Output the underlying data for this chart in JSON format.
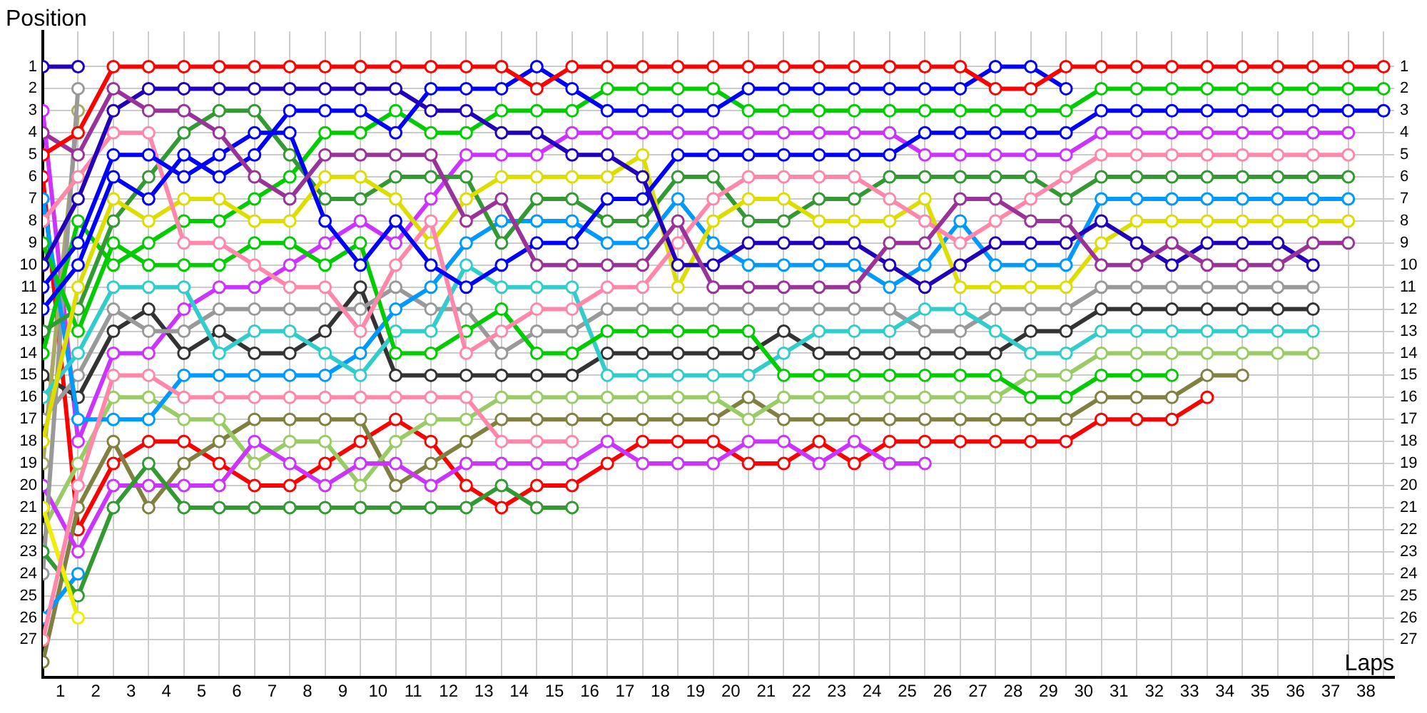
{
  "chart_data": {
    "type": "line",
    "ylabel": "Position",
    "xlabel": "Laps",
    "marker": "circle",
    "grid": true,
    "legend": false,
    "x": [
      0,
      1,
      2,
      3,
      4,
      5,
      6,
      7,
      8,
      9,
      10,
      11,
      12,
      13,
      14,
      15,
      16,
      17,
      18,
      19,
      20,
      21,
      22,
      23,
      24,
      25,
      26,
      27,
      28,
      29,
      30,
      31,
      32,
      33,
      34,
      35,
      36,
      37,
      38
    ],
    "xlim": [
      0,
      38.3
    ],
    "xticks": [
      {
        "value": 0,
        "label": null
      },
      {
        "value": 0.5,
        "label": "1"
      },
      {
        "value": 1,
        "label": null
      },
      {
        "value": 1.5,
        "label": "2"
      },
      {
        "value": 2,
        "label": null
      },
      {
        "value": 2.5,
        "label": "3"
      },
      {
        "value": 3,
        "label": null
      },
      {
        "value": 3.5,
        "label": "4"
      },
      {
        "value": 4,
        "label": null
      },
      {
        "value": 4.5,
        "label": "5"
      },
      {
        "value": 5,
        "label": null
      },
      {
        "value": 5.5,
        "label": "6"
      },
      {
        "value": 6,
        "label": null
      },
      {
        "value": 6.5,
        "label": "7"
      },
      {
        "value": 7,
        "label": null
      },
      {
        "value": 7.5,
        "label": "8"
      },
      {
        "value": 8,
        "label": null
      },
      {
        "value": 8.5,
        "label": "9"
      },
      {
        "value": 9,
        "label": null
      },
      {
        "value": 9.5,
        "label": "10"
      },
      {
        "value": 10,
        "label": null
      },
      {
        "value": 10.5,
        "label": "11"
      },
      {
        "value": 11,
        "label": null
      },
      {
        "value": 11.5,
        "label": "12"
      },
      {
        "value": 12,
        "label": null
      },
      {
        "value": 12.5,
        "label": "13"
      },
      {
        "value": 13,
        "label": null
      },
      {
        "value": 13.5,
        "label": "14"
      },
      {
        "value": 14,
        "label": null
      },
      {
        "value": 14.5,
        "label": "15"
      },
      {
        "value": 15,
        "label": null
      },
      {
        "value": 15.5,
        "label": "16"
      },
      {
        "value": 16,
        "label": null
      },
      {
        "value": 16.5,
        "label": "17"
      },
      {
        "value": 17,
        "label": null
      },
      {
        "value": 17.5,
        "label": "18"
      },
      {
        "value": 18,
        "label": null
      },
      {
        "value": 18.5,
        "label": "19"
      },
      {
        "value": 19,
        "label": null
      },
      {
        "value": 19.5,
        "label": "20"
      },
      {
        "value": 20,
        "label": null
      },
      {
        "value": 20.5,
        "label": "21"
      },
      {
        "value": 21,
        "label": null
      },
      {
        "value": 21.5,
        "label": "22"
      },
      {
        "value": 22,
        "label": null
      },
      {
        "value": 22.5,
        "label": "23"
      },
      {
        "value": 23,
        "label": null
      },
      {
        "value": 23.5,
        "label": "24"
      },
      {
        "value": 24,
        "label": null
      },
      {
        "value": 24.5,
        "label": "25"
      },
      {
        "value": 25,
        "label": null
      },
      {
        "value": 25.5,
        "label": "26"
      },
      {
        "value": 26,
        "label": null
      },
      {
        "value": 26.5,
        "label": "27"
      },
      {
        "value": 27,
        "label": null
      },
      {
        "value": 27.5,
        "label": "28"
      },
      {
        "value": 28,
        "label": null
      },
      {
        "value": 28.5,
        "label": "29"
      },
      {
        "value": 29,
        "label": null
      },
      {
        "value": 29.5,
        "label": "30"
      },
      {
        "value": 30,
        "label": null
      },
      {
        "value": 30.5,
        "label": "31"
      },
      {
        "value": 31,
        "label": null
      },
      {
        "value": 31.5,
        "label": "32"
      },
      {
        "value": 32,
        "label": null
      },
      {
        "value": 32.5,
        "label": "33"
      },
      {
        "value": 33,
        "label": null
      },
      {
        "value": 33.5,
        "label": "34"
      },
      {
        "value": 34,
        "label": null
      },
      {
        "value": 34.5,
        "label": "35"
      },
      {
        "value": 35,
        "label": null
      },
      {
        "value": 35.5,
        "label": "36"
      },
      {
        "value": 36,
        "label": null
      },
      {
        "value": 36.5,
        "label": "37"
      },
      {
        "value": 37,
        "label": null
      },
      {
        "value": 37.5,
        "label": "38"
      },
      {
        "value": 38,
        "label": null
      }
    ],
    "ylim": [
      28.7,
      -0.6
    ],
    "yticks": [
      1,
      2,
      3,
      4,
      5,
      6,
      7,
      8,
      9,
      10,
      11,
      12,
      13,
      14,
      15,
      16,
      17,
      18,
      19,
      20,
      21,
      22,
      23,
      24,
      25,
      26,
      27
    ],
    "y2lim": [
      28.7,
      -0.6
    ],
    "y2ticks": [
      1,
      2,
      3,
      4,
      5,
      6,
      7,
      8,
      9,
      10,
      11,
      12,
      13,
      14,
      15,
      16,
      17,
      18,
      19,
      20,
      21,
      22,
      23,
      24,
      25,
      26,
      27
    ],
    "series": [
      {
        "color": "#ff0000",
        "values": [
          5,
          4,
          1,
          1,
          1,
          1,
          1,
          1,
          1,
          1,
          1,
          1,
          1,
          1,
          2,
          1,
          1,
          1,
          1,
          1,
          1,
          1,
          1,
          1,
          1,
          1,
          1,
          2,
          2,
          1,
          1,
          1,
          1,
          1,
          1,
          1,
          1,
          1,
          1
        ]
      },
      {
        "color": "#993399",
        "values": [
          4,
          5,
          2,
          3,
          3,
          4,
          6,
          7,
          5,
          5,
          5,
          5,
          8,
          7,
          10,
          10,
          10,
          10,
          8,
          11,
          11,
          11,
          11,
          11,
          9,
          9,
          7,
          7,
          8,
          8,
          10,
          10,
          9,
          10,
          10,
          10,
          9,
          9,
          null
        ]
      },
      {
        "color": "#2200bb",
        "values": [
          10,
          7,
          3,
          2,
          2,
          2,
          2,
          2,
          2,
          2,
          2,
          3,
          3,
          4,
          4,
          5,
          5,
          6,
          10,
          10,
          9,
          9,
          9,
          9,
          10,
          11,
          10,
          9,
          9,
          9,
          8,
          9,
          10,
          9,
          9,
          9,
          10,
          null,
          null
        ]
      },
      {
        "color": "#0000ff",
        "values": [
          11,
          9,
          5,
          5,
          6,
          5,
          4,
          4,
          8,
          10,
          8,
          10,
          11,
          10,
          9,
          9,
          7,
          7,
          5,
          5,
          5,
          5,
          5,
          5,
          5,
          4,
          4,
          4,
          4,
          4,
          3,
          3,
          3,
          3,
          3,
          3,
          3,
          3,
          3
        ]
      },
      {
        "color": "#0000ff",
        "values": [
          12,
          10,
          6,
          7,
          5,
          6,
          5,
          3,
          3,
          3,
          4,
          2,
          2,
          2,
          1,
          2,
          3,
          3,
          3,
          3,
          2,
          2,
          2,
          2,
          2,
          2,
          2,
          1,
          1,
          2,
          null,
          null,
          null,
          null,
          null,
          null,
          null,
          null,
          null
        ]
      },
      {
        "color": "#ff88aa",
        "values": [
          8,
          6,
          4,
          4,
          9,
          9,
          10,
          11,
          11,
          13,
          10,
          8,
          14,
          13,
          12,
          12,
          11,
          11,
          9,
          7,
          6,
          6,
          6,
          6,
          7,
          8,
          9,
          8,
          7,
          6,
          5,
          5,
          5,
          5,
          5,
          5,
          5,
          5,
          null
        ]
      },
      {
        "color": "#ff88aa",
        "values": [
          27,
          20,
          15,
          15,
          16,
          16,
          16,
          16,
          16,
          16,
          16,
          16,
          16,
          18,
          18,
          18,
          null,
          null,
          null,
          null,
          null,
          null,
          null,
          null,
          null,
          null,
          null,
          null,
          null,
          null,
          null,
          null,
          null,
          null,
          null,
          null,
          null,
          null,
          null
        ]
      },
      {
        "color": "#dddd00",
        "values": [
          18,
          11,
          7,
          8,
          7,
          7,
          8,
          8,
          6,
          6,
          7,
          9,
          7,
          6,
          6,
          6,
          6,
          5,
          11,
          8,
          7,
          7,
          8,
          8,
          8,
          7,
          11,
          11,
          11,
          11,
          9,
          8,
          8,
          8,
          8,
          8,
          8,
          8,
          null
        ]
      },
      {
        "color": "#eeee00",
        "values": [
          21,
          26,
          null,
          null,
          null,
          null,
          null,
          null,
          null,
          null,
          null,
          null,
          null,
          null,
          null,
          null,
          null,
          null,
          null,
          null,
          null,
          null,
          null,
          null,
          null,
          null,
          null,
          null,
          null,
          null,
          null,
          null,
          null,
          null,
          null,
          null,
          null,
          null,
          null
        ]
      },
      {
        "color": "#339933",
        "values": [
          13,
          12,
          8,
          6,
          4,
          3,
          3,
          5,
          7,
          7,
          6,
          6,
          6,
          9,
          7,
          7,
          8,
          8,
          6,
          6,
          8,
          8,
          7,
          7,
          6,
          6,
          6,
          6,
          6,
          7,
          6,
          6,
          6,
          6,
          6,
          6,
          6,
          6,
          null
        ]
      },
      {
        "color": "#339933",
        "values": [
          23,
          25,
          21,
          19,
          21,
          21,
          21,
          21,
          21,
          21,
          21,
          21,
          21,
          20,
          21,
          21,
          null,
          null,
          null,
          null,
          null,
          null,
          null,
          null,
          null,
          null,
          null,
          null,
          null,
          null,
          null,
          null,
          null,
          null,
          null,
          null,
          null,
          null,
          null
        ]
      },
      {
        "color": "#00cc00",
        "values": [
          9,
          13,
          9,
          10,
          10,
          10,
          9,
          9,
          10,
          9,
          14,
          14,
          13,
          12,
          14,
          14,
          13,
          13,
          13,
          13,
          13,
          15,
          15,
          15,
          15,
          15,
          15,
          15,
          16,
          16,
          15,
          15,
          15,
          null,
          null,
          null,
          null,
          null,
          null
        ]
      },
      {
        "color": "#00cc00",
        "values": [
          14,
          8,
          10,
          9,
          8,
          8,
          7,
          6,
          4,
          4,
          3,
          4,
          4,
          3,
          3,
          3,
          2,
          2,
          2,
          2,
          3,
          3,
          3,
          3,
          3,
          3,
          3,
          3,
          3,
          3,
          2,
          2,
          2,
          2,
          2,
          2,
          2,
          2,
          2
        ]
      },
      {
        "color": "#33cccc",
        "values": [
          16,
          14,
          11,
          11,
          11,
          14,
          13,
          13,
          14,
          15,
          13,
          13,
          10,
          11,
          11,
          11,
          15,
          15,
          15,
          15,
          15,
          14,
          13,
          13,
          13,
          12,
          12,
          13,
          14,
          14,
          13,
          13,
          13,
          13,
          13,
          13,
          13,
          null,
          null
        ]
      },
      {
        "color": "#0099ff",
        "values": [
          7,
          17,
          17,
          17,
          15,
          15,
          15,
          15,
          15,
          14,
          12,
          11,
          9,
          8,
          8,
          8,
          9,
          9,
          7,
          9,
          10,
          10,
          10,
          10,
          11,
          10,
          8,
          10,
          10,
          10,
          7,
          7,
          7,
          7,
          7,
          7,
          7,
          7,
          null
        ]
      },
      {
        "color": "#0099ff",
        "values": [
          26,
          24,
          null,
          null,
          null,
          null,
          null,
          null,
          null,
          null,
          null,
          null,
          null,
          null,
          null,
          null,
          null,
          null,
          null,
          null,
          null,
          null,
          null,
          null,
          null,
          null,
          null,
          null,
          null,
          null,
          null,
          null,
          null,
          null,
          null,
          null,
          null,
          null,
          null
        ]
      },
      {
        "color": "#999999",
        "values": [
          17,
          15,
          12,
          13,
          13,
          12,
          12,
          12,
          12,
          12,
          11,
          12,
          12,
          14,
          13,
          13,
          12,
          12,
          12,
          12,
          12,
          12,
          12,
          12,
          12,
          13,
          13,
          12,
          12,
          12,
          11,
          11,
          11,
          11,
          11,
          11,
          11,
          null,
          null
        ]
      },
      {
        "color": "#999999",
        "values": [
          24,
          2,
          null,
          null,
          null,
          null,
          null,
          null,
          null,
          null,
          null,
          null,
          null,
          null,
          null,
          null,
          null,
          null,
          null,
          null,
          null,
          null,
          null,
          null,
          null,
          null,
          null,
          null,
          null,
          null,
          null,
          null,
          null,
          null,
          null,
          null,
          null,
          null,
          null
        ]
      },
      {
        "color": "#aaaa66",
        "values": [
          19,
          3,
          null,
          null,
          null,
          null,
          null,
          null,
          null,
          null,
          null,
          null,
          null,
          null,
          null,
          null,
          null,
          null,
          null,
          null,
          null,
          null,
          null,
          null,
          null,
          null,
          null,
          null,
          null,
          null,
          null,
          null,
          null,
          null,
          null,
          null,
          null,
          null,
          null
        ]
      },
      {
        "color": "#333333",
        "values": [
          15,
          16,
          13,
          12,
          14,
          13,
          14,
          14,
          13,
          11,
          15,
          15,
          15,
          15,
          15,
          15,
          14,
          14,
          14,
          14,
          14,
          13,
          14,
          14,
          14,
          14,
          14,
          14,
          13,
          13,
          12,
          12,
          12,
          12,
          12,
          12,
          12,
          null,
          null
        ]
      },
      {
        "color": "#cc33ff",
        "values": [
          3,
          18,
          14,
          14,
          12,
          11,
          11,
          10,
          9,
          8,
          9,
          7,
          5,
          5,
          5,
          4,
          4,
          4,
          4,
          4,
          4,
          4,
          4,
          4,
          4,
          5,
          5,
          5,
          5,
          5,
          4,
          4,
          4,
          4,
          4,
          4,
          4,
          4,
          null
        ]
      },
      {
        "color": "#cc33ff",
        "values": [
          20,
          23,
          20,
          20,
          20,
          20,
          18,
          19,
          20,
          19,
          19,
          20,
          19,
          19,
          19,
          19,
          18,
          19,
          19,
          19,
          18,
          18,
          19,
          18,
          19,
          19,
          null,
          null,
          null,
          null,
          null,
          null,
          null,
          null,
          null,
          null,
          null,
          null,
          null
        ]
      },
      {
        "color": "#99cc66",
        "values": [
          22,
          19,
          16,
          16,
          17,
          17,
          19,
          18,
          18,
          20,
          18,
          17,
          17,
          16,
          16,
          16,
          16,
          16,
          16,
          16,
          17,
          16,
          16,
          16,
          16,
          16,
          16,
          16,
          15,
          15,
          14,
          14,
          14,
          14,
          14,
          14,
          14,
          null,
          null
        ]
      },
      {
        "color": "#808040",
        "values": [
          28,
          21,
          18,
          21,
          19,
          18,
          17,
          17,
          17,
          17,
          20,
          19,
          18,
          17,
          17,
          17,
          17,
          17,
          17,
          17,
          16,
          17,
          17,
          17,
          17,
          17,
          17,
          17,
          17,
          17,
          16,
          16,
          16,
          15,
          15,
          null,
          null,
          null,
          null
        ]
      },
      {
        "color": "#ff0000",
        "values": [
          6,
          22,
          19,
          18,
          18,
          19,
          20,
          20,
          19,
          18,
          17,
          18,
          20,
          21,
          20,
          20,
          19,
          18,
          18,
          18,
          19,
          19,
          18,
          19,
          18,
          18,
          18,
          18,
          18,
          18,
          17,
          17,
          17,
          16,
          null,
          null,
          null,
          null,
          null
        ]
      },
      {
        "color": "#2200bb",
        "values": [
          1,
          1,
          null,
          null,
          null,
          null,
          null,
          null,
          null,
          null,
          null,
          null,
          null,
          null,
          null,
          null,
          null,
          null,
          null,
          null,
          null,
          null,
          null,
          null,
          null,
          null,
          null,
          null,
          null,
          null,
          null,
          null,
          null,
          null,
          null,
          null,
          null,
          null,
          null
        ]
      }
    ]
  }
}
